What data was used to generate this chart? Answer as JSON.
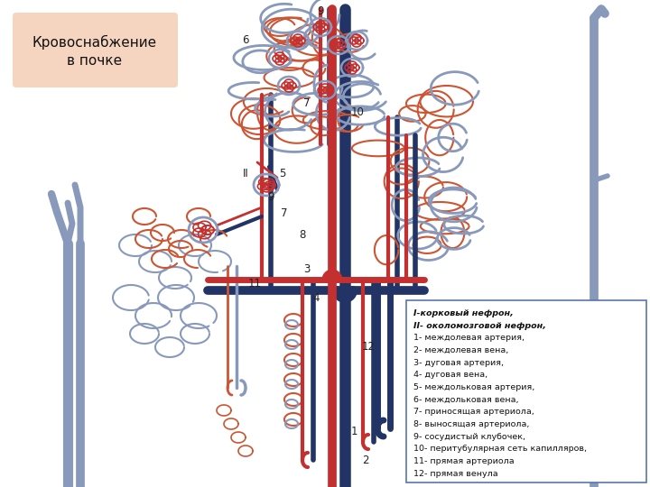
{
  "title": "Кровоснабжение\nв почке",
  "title_bg": "#f5d5c0",
  "bg_color": "#ffffff",
  "legend_lines": [
    "I-корковый нефрон,",
    "II- околомозговой нефрон,",
    "1- междолевая артерия,",
    "2- междолевая вена,",
    "3- дуговая артерия,",
    "4- дуговая вена,",
    "5- междольковая артерия,",
    "6- междольковая вена,",
    "7- приносящая артериола,",
    "8- выносящая артериола,",
    "9- сосудистый клубочек,",
    "10- перитубулярная сеть капилляров,",
    "11- прямая артериола",
    "12- прямая венула"
  ],
  "legend_italic_lines": [
    0,
    1
  ],
  "red": "#c43030",
  "blue": "#3355aa",
  "dark_blue": "#223366",
  "light_blue_gray": "#8899bb",
  "gray": "#556677",
  "orange_tubule": "#cc5533",
  "peach_bg": "#f5d5c0"
}
